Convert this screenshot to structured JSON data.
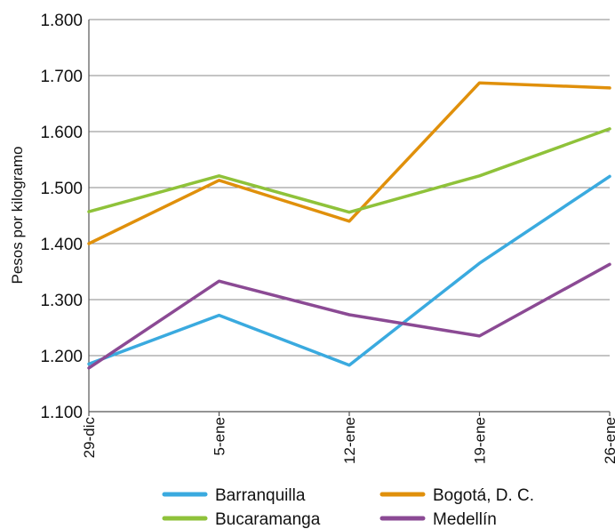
{
  "chart_data": {
    "type": "line",
    "ylabel": "Pesos por kilogramo",
    "categories": [
      "29-dic",
      "5-ene",
      "12-ene",
      "19-ene",
      "26-ene"
    ],
    "y_tick_labels": [
      "1.100",
      "1.200",
      "1.300",
      "1.400",
      "1.500",
      "1.600",
      "1.700",
      "1.800"
    ],
    "ylim": [
      1100,
      1800
    ],
    "grid": true,
    "legend": "bottom",
    "series": [
      {
        "name": "Barranquilla",
        "color": "#3aaadf",
        "values": [
          1185,
          1272,
          1183,
          1365,
          1520
        ]
      },
      {
        "name": "Bogotá, D. C.",
        "color": "#e0900b",
        "values": [
          1400,
          1513,
          1440,
          1687,
          1678
        ]
      },
      {
        "name": "Bucaramanga",
        "color": "#8fc23a",
        "values": [
          1457,
          1521,
          1456,
          1521,
          1605
        ]
      },
      {
        "name": "Medellín",
        "color": "#8b4a94",
        "values": [
          1178,
          1333,
          1273,
          1235,
          1363
        ]
      }
    ]
  }
}
